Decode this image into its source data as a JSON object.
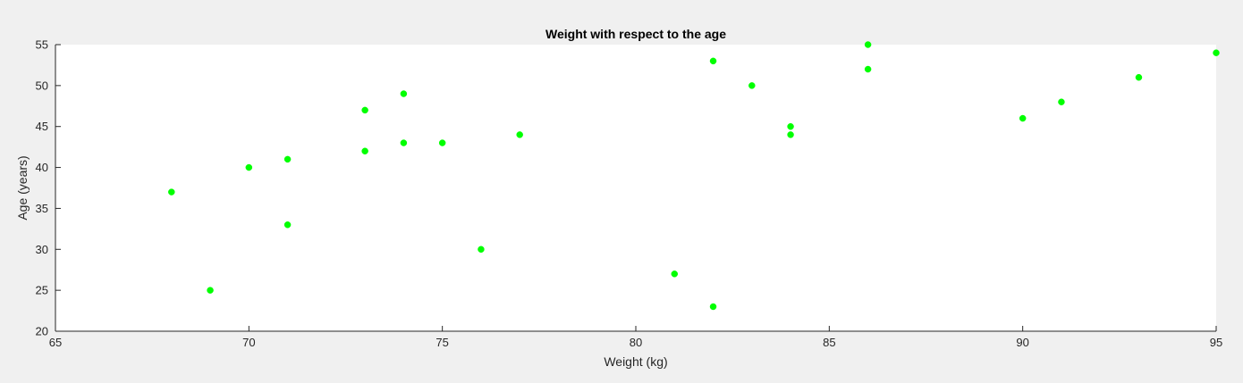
{
  "chart_data": {
    "type": "scatter",
    "title": "Weight with respect to the age",
    "xlabel": "Weight (kg)",
    "ylabel": "Age (years)",
    "xlim": [
      65,
      95
    ],
    "ylim": [
      20,
      55
    ],
    "xticks": [
      65,
      70,
      75,
      80,
      85,
      90,
      95
    ],
    "yticks": [
      20,
      25,
      30,
      35,
      40,
      45,
      50,
      55
    ],
    "grid": false,
    "legend": "none",
    "marker_color": "#00ff00",
    "background_color": "#ffffff",
    "figure_color": "#f0f0f0",
    "points": [
      {
        "x": 68,
        "y": 37
      },
      {
        "x": 69,
        "y": 25
      },
      {
        "x": 70,
        "y": 40
      },
      {
        "x": 71,
        "y": 41
      },
      {
        "x": 71,
        "y": 33
      },
      {
        "x": 73,
        "y": 47
      },
      {
        "x": 73,
        "y": 42
      },
      {
        "x": 74,
        "y": 49
      },
      {
        "x": 74,
        "y": 43
      },
      {
        "x": 75,
        "y": 43
      },
      {
        "x": 76,
        "y": 30
      },
      {
        "x": 77,
        "y": 44
      },
      {
        "x": 81,
        "y": 27
      },
      {
        "x": 82,
        "y": 53
      },
      {
        "x": 82,
        "y": 23
      },
      {
        "x": 83,
        "y": 50
      },
      {
        "x": 84,
        "y": 45
      },
      {
        "x": 84,
        "y": 44
      },
      {
        "x": 86,
        "y": 55
      },
      {
        "x": 86,
        "y": 52
      },
      {
        "x": 90,
        "y": 46
      },
      {
        "x": 91,
        "y": 48
      },
      {
        "x": 93,
        "y": 51
      },
      {
        "x": 95,
        "y": 54
      }
    ]
  }
}
